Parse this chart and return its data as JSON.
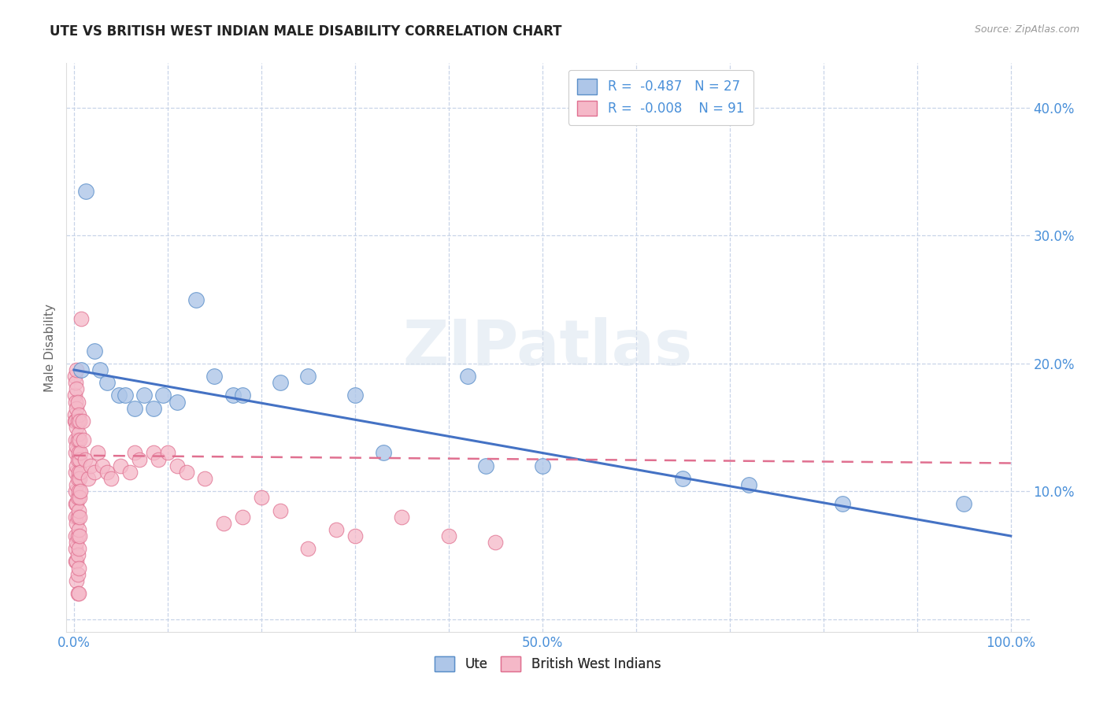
{
  "title": "UTE VS BRITISH WEST INDIAN MALE DISABILITY CORRELATION CHART",
  "source": "Source: ZipAtlas.com",
  "ylabel": "Male Disability",
  "watermark": "ZIPatlas",
  "legend_ute_r": "-0.487",
  "legend_ute_n": "27",
  "legend_bwi_r": "-0.008",
  "legend_bwi_n": "91",
  "ute_color": "#aec6e8",
  "bwi_color": "#f5b8c8",
  "ute_edge_color": "#5b8fc9",
  "bwi_edge_color": "#e07090",
  "ute_line_color": "#4472c4",
  "bwi_line_color": "#e07090",
  "grid_color": "#c8d4e8",
  "tick_color": "#4a90d9",
  "background_color": "#ffffff",
  "ute_points": [
    [
      0.008,
      0.195
    ],
    [
      0.013,
      0.335
    ],
    [
      0.022,
      0.21
    ],
    [
      0.028,
      0.195
    ],
    [
      0.035,
      0.185
    ],
    [
      0.048,
      0.175
    ],
    [
      0.055,
      0.175
    ],
    [
      0.065,
      0.165
    ],
    [
      0.075,
      0.175
    ],
    [
      0.085,
      0.165
    ],
    [
      0.095,
      0.175
    ],
    [
      0.11,
      0.17
    ],
    [
      0.13,
      0.25
    ],
    [
      0.15,
      0.19
    ],
    [
      0.17,
      0.175
    ],
    [
      0.18,
      0.175
    ],
    [
      0.22,
      0.185
    ],
    [
      0.25,
      0.19
    ],
    [
      0.3,
      0.175
    ],
    [
      0.33,
      0.13
    ],
    [
      0.42,
      0.19
    ],
    [
      0.44,
      0.12
    ],
    [
      0.5,
      0.12
    ],
    [
      0.65,
      0.11
    ],
    [
      0.72,
      0.105
    ],
    [
      0.82,
      0.09
    ],
    [
      0.95,
      0.09
    ]
  ],
  "bwi_points": [
    [
      0.001,
      0.19
    ],
    [
      0.001,
      0.175
    ],
    [
      0.001,
      0.16
    ],
    [
      0.001,
      0.155
    ],
    [
      0.002,
      0.185
    ],
    [
      0.002,
      0.17
    ],
    [
      0.002,
      0.155
    ],
    [
      0.002,
      0.14
    ],
    [
      0.002,
      0.13
    ],
    [
      0.002,
      0.115
    ],
    [
      0.002,
      0.1
    ],
    [
      0.002,
      0.09
    ],
    [
      0.002,
      0.08
    ],
    [
      0.002,
      0.065
    ],
    [
      0.002,
      0.055
    ],
    [
      0.002,
      0.045
    ],
    [
      0.003,
      0.195
    ],
    [
      0.003,
      0.18
    ],
    [
      0.003,
      0.165
    ],
    [
      0.003,
      0.15
    ],
    [
      0.003,
      0.135
    ],
    [
      0.003,
      0.12
    ],
    [
      0.003,
      0.105
    ],
    [
      0.003,
      0.09
    ],
    [
      0.003,
      0.075
    ],
    [
      0.003,
      0.06
    ],
    [
      0.003,
      0.045
    ],
    [
      0.003,
      0.03
    ],
    [
      0.004,
      0.17
    ],
    [
      0.004,
      0.155
    ],
    [
      0.004,
      0.14
    ],
    [
      0.004,
      0.125
    ],
    [
      0.004,
      0.11
    ],
    [
      0.004,
      0.095
    ],
    [
      0.004,
      0.08
    ],
    [
      0.004,
      0.065
    ],
    [
      0.004,
      0.05
    ],
    [
      0.004,
      0.035
    ],
    [
      0.004,
      0.02
    ],
    [
      0.005,
      0.16
    ],
    [
      0.005,
      0.145
    ],
    [
      0.005,
      0.13
    ],
    [
      0.005,
      0.115
    ],
    [
      0.005,
      0.1
    ],
    [
      0.005,
      0.085
    ],
    [
      0.005,
      0.07
    ],
    [
      0.005,
      0.055
    ],
    [
      0.005,
      0.04
    ],
    [
      0.006,
      0.155
    ],
    [
      0.006,
      0.14
    ],
    [
      0.006,
      0.125
    ],
    [
      0.006,
      0.11
    ],
    [
      0.006,
      0.095
    ],
    [
      0.006,
      0.08
    ],
    [
      0.006,
      0.065
    ],
    [
      0.007,
      0.13
    ],
    [
      0.007,
      0.115
    ],
    [
      0.007,
      0.1
    ],
    [
      0.008,
      0.235
    ],
    [
      0.009,
      0.155
    ],
    [
      0.01,
      0.14
    ],
    [
      0.012,
      0.125
    ],
    [
      0.015,
      0.11
    ],
    [
      0.018,
      0.12
    ],
    [
      0.022,
      0.115
    ],
    [
      0.025,
      0.13
    ],
    [
      0.03,
      0.12
    ],
    [
      0.035,
      0.115
    ],
    [
      0.04,
      0.11
    ],
    [
      0.05,
      0.12
    ],
    [
      0.06,
      0.115
    ],
    [
      0.065,
      0.13
    ],
    [
      0.07,
      0.125
    ],
    [
      0.085,
      0.13
    ],
    [
      0.09,
      0.125
    ],
    [
      0.1,
      0.13
    ],
    [
      0.11,
      0.12
    ],
    [
      0.12,
      0.115
    ],
    [
      0.14,
      0.11
    ],
    [
      0.16,
      0.075
    ],
    [
      0.18,
      0.08
    ],
    [
      0.2,
      0.095
    ],
    [
      0.22,
      0.085
    ],
    [
      0.25,
      0.055
    ],
    [
      0.28,
      0.07
    ],
    [
      0.3,
      0.065
    ],
    [
      0.35,
      0.08
    ],
    [
      0.4,
      0.065
    ],
    [
      0.45,
      0.06
    ],
    [
      0.005,
      0.02
    ]
  ],
  "ute_trend_x0": 0.0,
  "ute_trend_y0": 0.195,
  "ute_trend_x1": 1.0,
  "ute_trend_y1": 0.065,
  "bwi_trend_x0": 0.0,
  "bwi_trend_y0": 0.128,
  "bwi_trend_x1": 1.0,
  "bwi_trend_y1": 0.122,
  "xlim_min": -0.008,
  "xlim_max": 1.02,
  "ylim_min": -0.01,
  "ylim_max": 0.435,
  "xtick_positions": [
    0.0,
    0.1,
    0.2,
    0.3,
    0.4,
    0.5,
    0.6,
    0.7,
    0.8,
    0.9,
    1.0
  ],
  "xtick_labels": [
    "0.0%",
    "",
    "",
    "",
    "",
    "50.0%",
    "",
    "",
    "",
    "",
    "100.0%"
  ],
  "ytick_positions": [
    0.0,
    0.1,
    0.2,
    0.3,
    0.4
  ],
  "ytick_labels_right": [
    "",
    "10.0%",
    "20.0%",
    "30.0%",
    "40.0%"
  ]
}
